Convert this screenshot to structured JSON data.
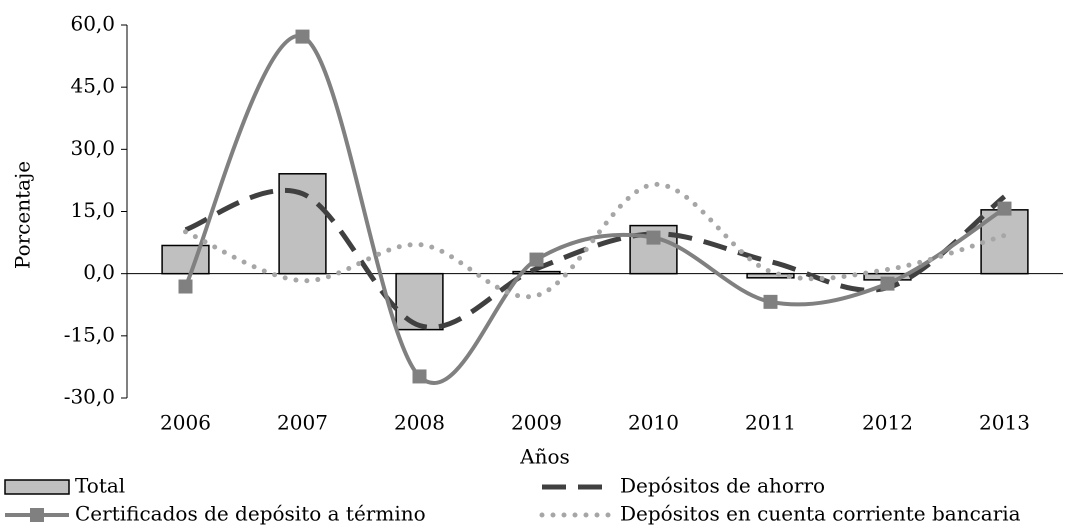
{
  "chart_data": {
    "type": "bar-line",
    "x_label": "Años",
    "y_label": "Porcentaje",
    "categories": [
      "2006",
      "2007",
      "2008",
      "2009",
      "2010",
      "2011",
      "2012",
      "2013"
    ],
    "series": [
      {
        "name": "Total",
        "kind": "bar",
        "color": "#c0c0c0",
        "values": [
          6.8,
          24.1,
          -13.5,
          0.5,
          11.6,
          -1.0,
          -1.5,
          15.4
        ]
      },
      {
        "name": "Depósitos de ahorro",
        "kind": "dashed",
        "color": "#404040",
        "values": [
          10.6,
          19.3,
          -12.5,
          1.2,
          9.6,
          2.9,
          -3.4,
          18.6
        ]
      },
      {
        "name": "Certificados de depósito a término",
        "kind": "marker",
        "color": "#808080",
        "values": [
          -3.1,
          57.2,
          -24.8,
          3.4,
          8.7,
          -6.8,
          -2.4,
          15.7
        ]
      },
      {
        "name": "Depósitos en cuenta corriente bancaria",
        "kind": "dotted",
        "color": "#a6a6a6",
        "values": [
          10.1,
          -1.7,
          7.0,
          -5.3,
          21.5,
          0.5,
          1.0,
          9.2
        ]
      }
    ],
    "ylim": [
      -30,
      60
    ],
    "yticks": [
      {
        "value": -30,
        "label": "-30,0"
      },
      {
        "value": -15,
        "label": "-15,0"
      },
      {
        "value": 0,
        "label": "0,0"
      },
      {
        "value": 15,
        "label": "15,0"
      },
      {
        "value": 30,
        "label": "30,0"
      },
      {
        "value": 45,
        "label": "45,0"
      },
      {
        "value": 60,
        "label": "60,0"
      }
    ]
  }
}
